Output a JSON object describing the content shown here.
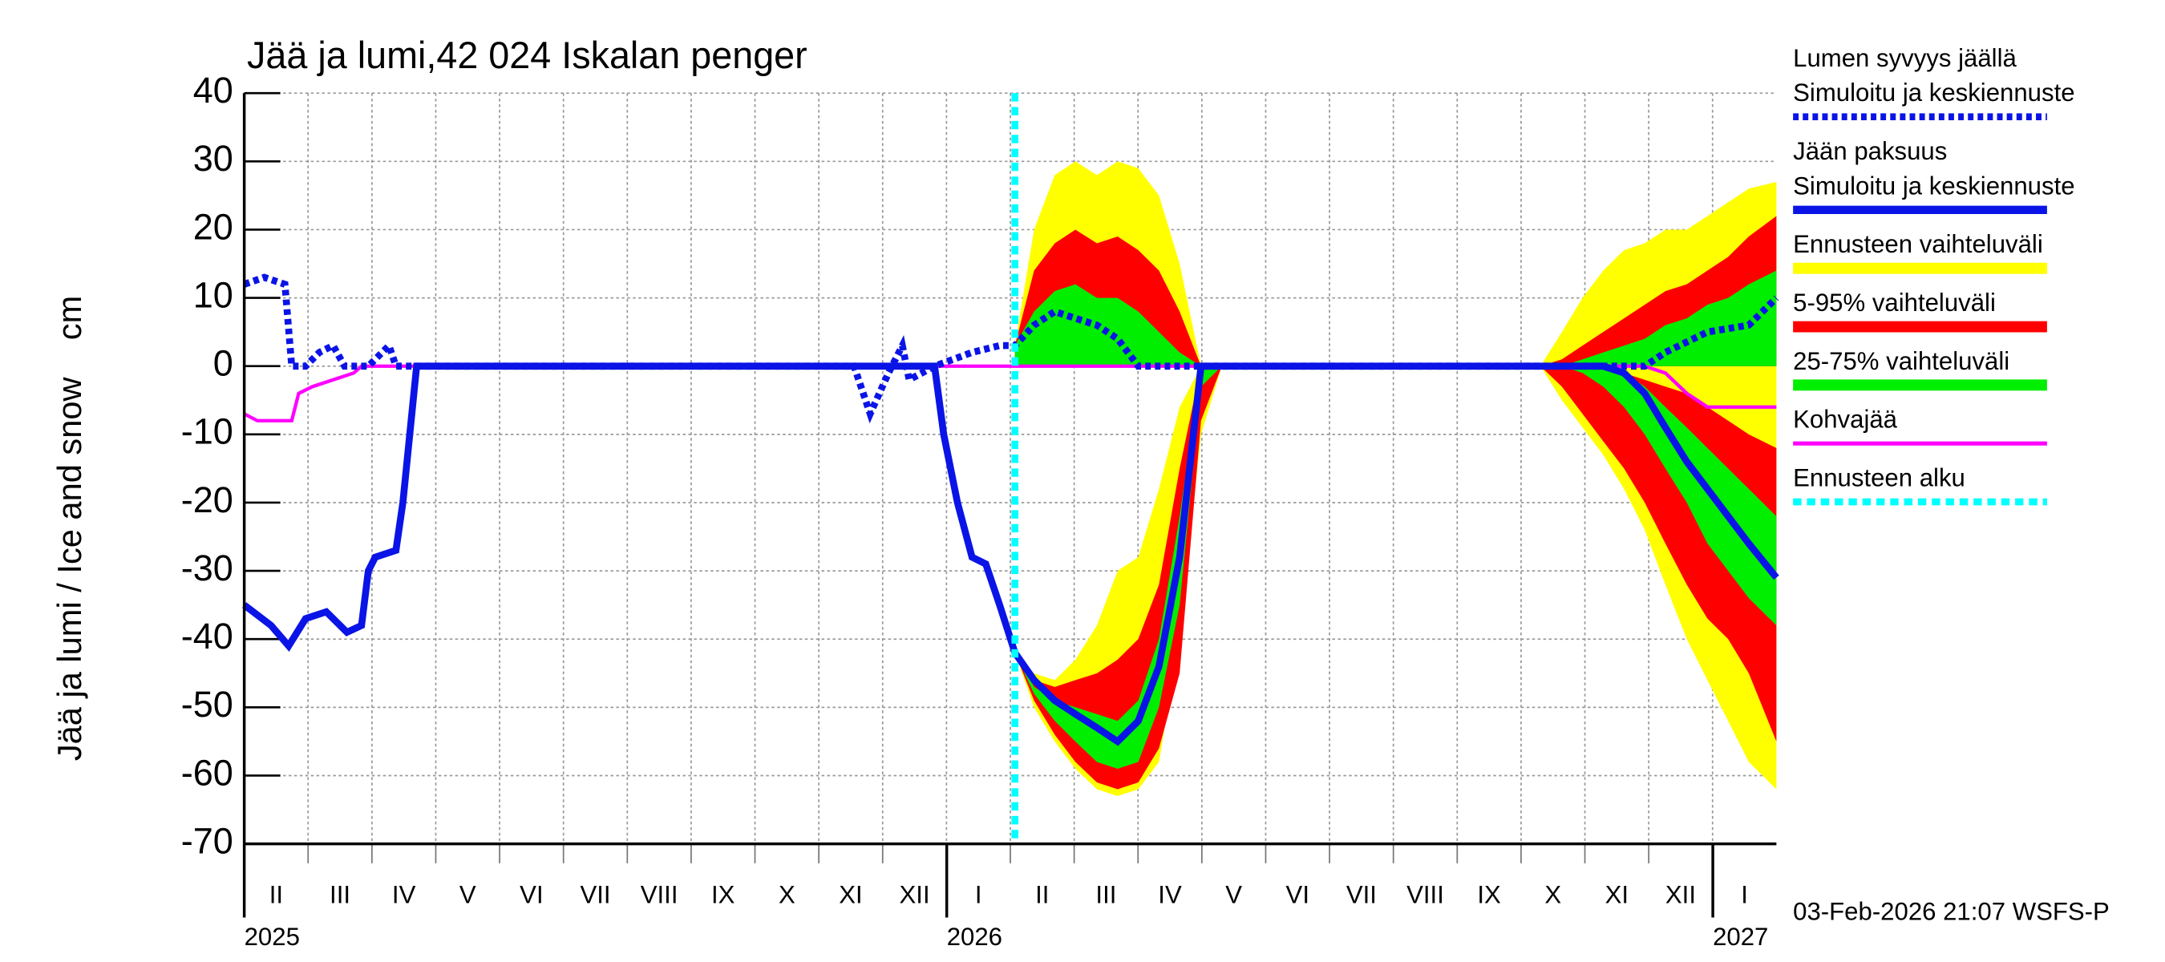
{
  "chart_data": {
    "type": "ice-snow",
    "title": "Jää ja lumi,42 024 Iskalan penger",
    "y_label": "Jää ja lumi / Ice and snow    cm",
    "footer": "03-Feb-2026 21:07 WSFS-P",
    "xlim": [
      2025.083,
      2027.083
    ],
    "xticks": [
      {
        "value": 2025.083,
        "label": "2025"
      },
      {
        "value": 2026,
        "label": "2026"
      },
      {
        "value": 2027,
        "label": "2027"
      }
    ],
    "month_labels": [
      "II",
      "III",
      "IV",
      "V",
      "VI",
      "VII",
      "VIII",
      "IX",
      "X",
      "XI",
      "XII",
      "I",
      "II",
      "III",
      "IV",
      "V",
      "VI",
      "VII",
      "VIII",
      "IX",
      "X",
      "XI",
      "XII",
      "I"
    ],
    "ylim": [
      -70,
      40
    ],
    "yticks": [
      -70,
      -60,
      -50,
      -40,
      -30,
      -20,
      -10,
      0,
      10,
      20,
      30,
      40
    ],
    "grid": true,
    "forecast_x": [
      2026.089,
      2026.114,
      2026.141,
      2026.168,
      2026.196,
      2026.223,
      2026.25,
      2026.277,
      2026.304,
      2026.332,
      2026.359,
      2026.576,
      2026.775,
      2026.803,
      2026.83,
      2026.857,
      2026.884,
      2026.911,
      2026.938,
      2026.966,
      2026.993,
      2027.02,
      2027.047,
      2027.083
    ],
    "series": [
      {
        "name": "Lumen syvyys jäällä",
        "label": "Simuloitu ja keskiennuste",
        "color": "#0a14e6",
        "style": "dashed",
        "x": [
          2025.083,
          2025.109,
          2025.136,
          2025.145,
          2025.163,
          2025.181,
          2025.199,
          2025.214,
          2025.245,
          2025.272,
          2025.281,
          2025.879,
          2025.9,
          2025.924,
          2025.942,
          2025.951,
          2025.984,
          2026.033,
          2026.069,
          2026.089,
          2026.114,
          2026.141,
          2026.168,
          2026.196,
          2026.223,
          2026.25,
          2026.277,
          2026.911,
          2026.938,
          2026.993,
          2027.047,
          2027.083
        ],
        "values": [
          12,
          13,
          12,
          0,
          0,
          2,
          3,
          0,
          0,
          3,
          0,
          0,
          -7,
          -1,
          3,
          -2,
          0,
          2,
          3,
          3,
          6,
          8,
          7,
          6,
          4,
          0,
          0,
          0,
          2,
          5,
          6,
          10
        ]
      },
      {
        "name": "Jään paksuus",
        "label": "Simuloitu ja keskiennuste",
        "color": "#0a14e6",
        "style": "solid",
        "x": [
          2025.083,
          2025.118,
          2025.141,
          2025.163,
          2025.19,
          2025.217,
          2025.236,
          2025.245,
          2025.254,
          2025.281,
          2025.29,
          2025.308,
          2025.984,
          2025.996,
          2026.014,
          2026.033,
          2026.051,
          2026.069,
          2026.089,
          2026.114,
          2026.141,
          2026.168,
          2026.196,
          2026.223,
          2026.25,
          2026.277,
          2026.304,
          2026.332,
          2026.857,
          2026.884,
          2026.911,
          2026.938,
          2026.966,
          2026.993,
          2027.02,
          2027.047,
          2027.083
        ],
        "values": [
          -35,
          -38,
          -41,
          -37,
          -36,
          -39,
          -38,
          -30,
          -28,
          -27,
          -20,
          0,
          0,
          -10,
          -20,
          -28,
          -29,
          -35,
          -42,
          -46,
          -49,
          -51,
          -53,
          -55,
          -52,
          -44,
          -28,
          0,
          0,
          -1,
          -4,
          -9,
          -14,
          -18,
          -22,
          -26,
          -31
        ]
      },
      {
        "name": "Ennusteen vaihteluväli",
        "color": "#ffff00",
        "style": "band",
        "snow_high": [
          3,
          20,
          28,
          30,
          28,
          30,
          29,
          25,
          15,
          0,
          0,
          0,
          0,
          5,
          10,
          14,
          17,
          18,
          20,
          20,
          22,
          24,
          26,
          27
        ],
        "ice_high": [
          -42,
          -45,
          -46,
          -43,
          -38,
          -30,
          -28,
          -18,
          -6,
          0,
          0,
          0,
          0,
          0,
          0,
          0,
          0,
          0,
          0,
          0,
          0,
          0,
          0,
          0
        ],
        "ice_low": [
          -42,
          -50,
          -55,
          -59,
          -62,
          -63,
          -62,
          -58,
          -40,
          -10,
          0,
          0,
          0,
          -5,
          -9,
          -13,
          -18,
          -24,
          -32,
          -40,
          -46,
          -52,
          -58,
          -62
        ]
      },
      {
        "name": "5-95% vaihteluväli",
        "color": "#ff0000",
        "style": "band",
        "snow_high": [
          3,
          14,
          18,
          20,
          18,
          19,
          17,
          14,
          8,
          0,
          0,
          0,
          0,
          1,
          3,
          5,
          7,
          9,
          11,
          12,
          14,
          16,
          19,
          22
        ],
        "ice_high": [
          -42,
          -46,
          -47,
          -46,
          -45,
          -43,
          -40,
          -32,
          -15,
          0,
          0,
          0,
          0,
          0,
          0,
          0,
          -1,
          -2,
          -3,
          -4,
          -6,
          -8,
          -10,
          -12
        ],
        "ice_low": [
          -42,
          -49,
          -54,
          -58,
          -61,
          -62,
          -61,
          -56,
          -45,
          -8,
          0,
          0,
          0,
          -3,
          -7,
          -11,
          -15,
          -20,
          -26,
          -32,
          -37,
          -40,
          -45,
          -55
        ]
      },
      {
        "name": "25-75% vaihteluväli",
        "color": "#00ee00",
        "style": "band",
        "snow_high": [
          3,
          8,
          11,
          12,
          10,
          10,
          8,
          5,
          2,
          0,
          0,
          0,
          0,
          0,
          1,
          2,
          3,
          4,
          6,
          7,
          9,
          10,
          12,
          14
        ],
        "ice_high": [
          -42,
          -47,
          -49,
          -50,
          -51,
          -52,
          -49,
          -40,
          -22,
          0,
          0,
          0,
          0,
          0,
          0,
          0,
          -1,
          -3,
          -6,
          -9,
          -12,
          -15,
          -18,
          -22
        ],
        "ice_low": [
          -42,
          -48,
          -52,
          -55,
          -58,
          -59,
          -58,
          -50,
          -35,
          -3,
          0,
          0,
          0,
          0,
          -1,
          -3,
          -6,
          -10,
          -15,
          -20,
          -26,
          -30,
          -34,
          -38
        ]
      },
      {
        "name": "Kohvajää",
        "color": "#ff00ff",
        "style": "thin",
        "x": [
          2025.083,
          2025.1,
          2025.145,
          2025.154,
          2025.172,
          2025.199,
          2025.226,
          2025.236,
          2026.911,
          2026.938,
          2026.966,
          2026.993,
          2027.083
        ],
        "values": [
          -7,
          -8,
          -8,
          -4,
          -3,
          -2,
          -1,
          0,
          0,
          -1,
          -4,
          -6,
          -6
        ]
      }
    ],
    "forecast_start": {
      "name": "Ennusteen alku",
      "x": 2026.089,
      "color": "#00ffff"
    }
  }
}
